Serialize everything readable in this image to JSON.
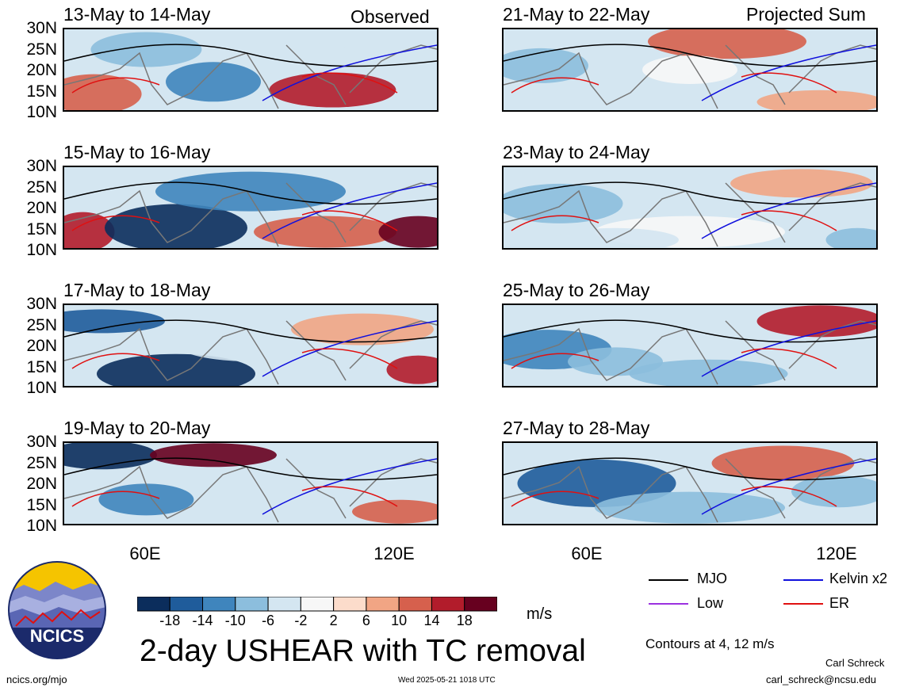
{
  "header": {
    "left_label": "Observed",
    "right_label": "Projected Sum"
  },
  "panels": {
    "left": [
      {
        "title": "13-May to 14-May"
      },
      {
        "title": "15-May to 16-May"
      },
      {
        "title": "17-May to 18-May"
      },
      {
        "title": "19-May to 20-May"
      }
    ],
    "right": [
      {
        "title": "21-May to 22-May"
      },
      {
        "title": "23-May to 24-May"
      },
      {
        "title": "25-May to 26-May"
      },
      {
        "title": "27-May to 28-May"
      }
    ]
  },
  "axes": {
    "lat_ticks": [
      "30N",
      "25N",
      "20N",
      "15N",
      "10N"
    ],
    "lon_ticks": [
      "60E",
      "120E"
    ]
  },
  "colorbar": {
    "unit": "m/s",
    "ticks": [
      "-18",
      "-14",
      "-10",
      "-6",
      "-2",
      "2",
      "6",
      "10",
      "14",
      "18"
    ],
    "colors": [
      "#0b2d5c",
      "#1f5c9b",
      "#3f85bd",
      "#8cbedd",
      "#d4e6f1",
      "#f7f7f7",
      "#fcdccb",
      "#f1a584",
      "#d6604d",
      "#b21c2b",
      "#67001f"
    ]
  },
  "legend": {
    "mjo": "MJO",
    "kelvin": "Kelvin x2",
    "low": "Low",
    "er": "ER",
    "contours_note": "Contours at 4, 12 m/s",
    "colors": {
      "mjo": "#000000",
      "kelvin": "#1010dd",
      "low": "#9b30e0",
      "er": "#e01010"
    }
  },
  "main_title": "2-day USHEAR with TC removal",
  "logo_text": "NCICS",
  "footer": {
    "left": "ncics.org/mjo",
    "center": "Wed 2025-05-21 1018 UTC",
    "author": "Carl Schreck",
    "email": "carl_schreck@ncsu.edu"
  }
}
